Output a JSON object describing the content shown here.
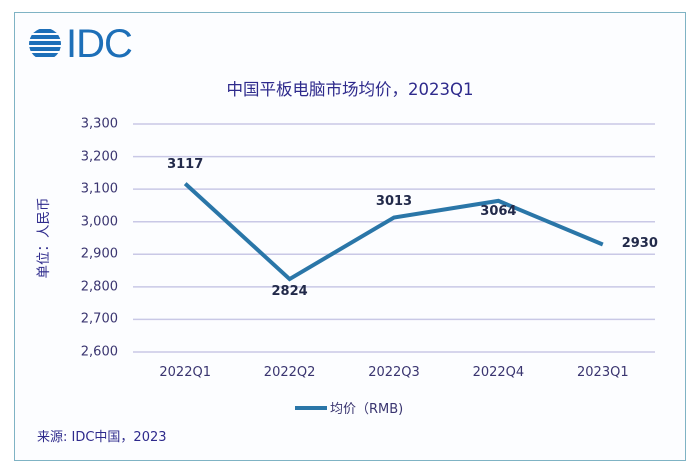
{
  "logo": {
    "text": "IDC",
    "icon": "idc-globe-icon",
    "color": "#1d6fb8"
  },
  "chart_data": {
    "type": "line",
    "title": "中国平板电脑市场均价，2023Q1",
    "xlabel": "",
    "ylabel": "单位：人民币",
    "categories": [
      "2022Q1",
      "2022Q2",
      "2022Q3",
      "2022Q4",
      "2023Q1"
    ],
    "series": [
      {
        "name": "均价（RMB)",
        "values": [
          3117,
          2824,
          3013,
          3064,
          2930
        ],
        "color": "#2a76a8"
      }
    ],
    "ylim": [
      2600,
      3300
    ],
    "yticks": [
      "3,300",
      "3,200",
      "3,100",
      "3,000",
      "2,900",
      "2,800",
      "2,700",
      "2,600"
    ],
    "ytick_values": [
      3300,
      3200,
      3100,
      3000,
      2900,
      2800,
      2700,
      2600
    ],
    "data_labels": [
      "3117",
      "2824",
      "3013",
      "3064",
      "2930"
    ],
    "grid": true,
    "gridline_color": "#c9c8e6",
    "legend_position": "bottom",
    "legend": [
      "均价（RMB)"
    ]
  },
  "legend_label": "均价（RMB)",
  "source": "来源: IDC中国，2023"
}
